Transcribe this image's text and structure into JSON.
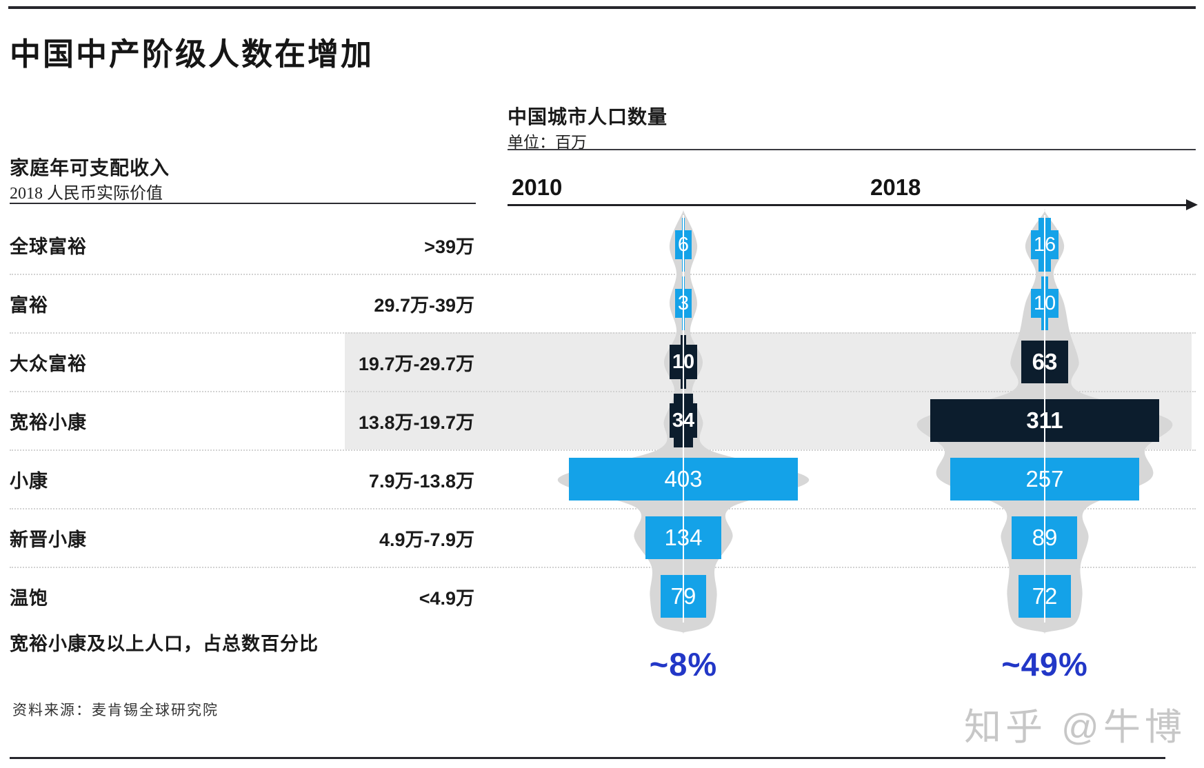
{
  "title": "中国中产阶级人数在增加",
  "left_table": {
    "header": "家庭年可支配收入",
    "subheader": "2018 人民币实际价值",
    "rows": [
      {
        "label": "全球富裕",
        "range": ">39万"
      },
      {
        "label": "富裕",
        "range": "29.7万-39万"
      },
      {
        "label": "大众富裕",
        "range": "19.7万-29.7万"
      },
      {
        "label": "宽裕小康",
        "range": "13.8万-19.7万"
      },
      {
        "label": "小康",
        "range": "7.9万-13.8万"
      },
      {
        "label": "新晋小康",
        "range": "4.9万-7.9万"
      },
      {
        "label": "温饱",
        "range": "<4.9万"
      }
    ],
    "footer_label": "宽裕小康及以上人口，占总数百分比"
  },
  "chart_data": {
    "type": "bar",
    "title": "中国城市人口数量",
    "unit_label": "单位：百万",
    "unit": "百万",
    "categories": [
      "全球富裕",
      "富裕",
      "大众富裕",
      "宽裕小康",
      "小康",
      "新晋小康",
      "温饱"
    ],
    "income_ranges": [
      ">39万",
      "29.7万-39万",
      "19.7万-29.7万",
      "13.8万-19.7万",
      "7.9万-13.8万",
      "4.9万-7.9万",
      "<4.9万"
    ],
    "series": [
      {
        "name": "2010",
        "values": [
          6,
          3,
          10,
          34,
          403,
          134,
          79
        ]
      },
      {
        "name": "2018",
        "values": [
          16,
          10,
          63,
          311,
          257,
          89,
          72
        ]
      }
    ],
    "share_of_total": [
      {
        "year": "2010",
        "label": "~8%"
      },
      {
        "year": "2018",
        "label": "~49%"
      }
    ],
    "highlighted_categories": [
      "大众富裕",
      "宽裕小康"
    ],
    "layout_hints": {
      "orientation": "centered funnel columns",
      "grid": false,
      "legend": "none"
    }
  },
  "source": "资料来源：麦肯锡全球研究院",
  "watermark": "知乎 @牛博",
  "colors": {
    "bar_blue": "#14a2e8",
    "bar_dark": "#0c1d2d",
    "percent_blue": "#2237c7",
    "silhouette": "#d7d7d7",
    "band": "#ebebeb",
    "text": "#1a1a1a"
  }
}
